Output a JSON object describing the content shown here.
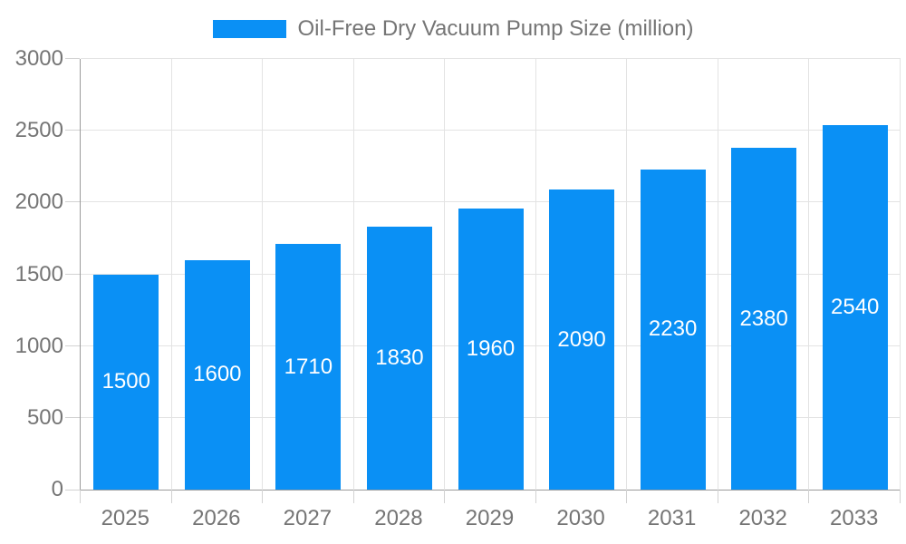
{
  "legend": {
    "label": "Oil-Free Dry Vacuum Pump Size (million)"
  },
  "chart_data": {
    "type": "bar",
    "title": "Oil-Free Dry Vacuum Pump Size (million)",
    "categories": [
      "2025",
      "2026",
      "2027",
      "2028",
      "2029",
      "2030",
      "2031",
      "2032",
      "2033"
    ],
    "values": [
      1500,
      1600,
      1710,
      1830,
      1960,
      2090,
      2230,
      2380,
      2540
    ],
    "xlabel": "",
    "ylabel": "",
    "ylim": [
      0,
      3000
    ],
    "yticks": [
      0,
      500,
      1000,
      1500,
      2000,
      2500,
      3000
    ],
    "grid": true,
    "legend_position": "top-center",
    "bar_label_position": "inside-center",
    "colors": {
      "bar": "#0a90f5",
      "bar_label": "#ffffff",
      "axis_text": "#757575",
      "axis_line": "#9a9a9a",
      "gridline": "#e3e3e3",
      "tick": "#d2d2d2",
      "background": "#ffffff"
    }
  }
}
